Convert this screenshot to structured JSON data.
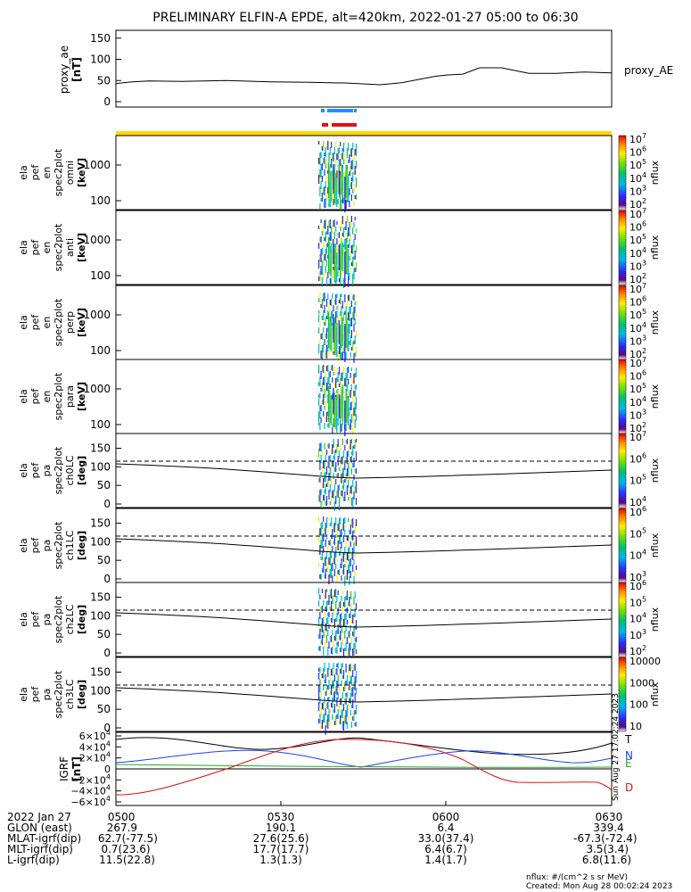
{
  "title": "PRELIMINARY ELFIN-A EPDE, alt=420km, 2022-01-27 05:00 to 06:30",
  "colors": {
    "blue": "#1f8fff",
    "red": "#dd1111",
    "yellow": "#ffd800",
    "green": "#22aa22"
  },
  "chart_data": [
    {
      "type": "line",
      "ylabel": "proxy_ae [nT]",
      "series": [
        {
          "name": "proxy_AE",
          "x": [
            "05:00",
            "05:03",
            "05:06",
            "05:12",
            "05:20",
            "05:28",
            "05:35",
            "05:42",
            "05:48",
            "05:52",
            "05:58",
            "06:00",
            "06:03",
            "06:06",
            "06:10",
            "06:15",
            "06:20",
            "06:25",
            "06:30"
          ],
          "values": [
            43,
            47,
            49,
            48,
            50,
            47,
            46,
            44,
            40,
            45,
            60,
            63,
            65,
            80,
            80,
            67,
            67,
            70,
            68
          ]
        }
      ],
      "yticks": [
        "0",
        "50",
        "100",
        "150"
      ],
      "ylim": [
        0,
        160
      ]
    },
    {
      "type": "heatmap",
      "ylabel_lines": [
        "ela",
        "pef",
        "en",
        "spec2plot",
        "omni",
        "[keV]"
      ],
      "yticks": [
        "100",
        "1000"
      ],
      "colorbar": {
        "label": "nflux",
        "ticks": [
          "10^2",
          "10^3",
          "10^4",
          "10^5",
          "10^6",
          "10^7"
        ]
      }
    },
    {
      "type": "heatmap",
      "ylabel_lines": [
        "ela",
        "pef",
        "en",
        "spec2plot",
        "anti",
        "[keV]"
      ],
      "yticks": [
        "100",
        "1000"
      ],
      "colorbar": {
        "label": "nflux",
        "ticks": [
          "10^2",
          "10^3",
          "10^4",
          "10^5",
          "10^6",
          "10^7"
        ]
      }
    },
    {
      "type": "heatmap",
      "ylabel_lines": [
        "ela",
        "pef",
        "en",
        "spec2plot",
        "perp",
        "[keV]"
      ],
      "yticks": [
        "100",
        "1000"
      ],
      "colorbar": {
        "label": "nflux",
        "ticks": [
          "10^2",
          "10^3",
          "10^4",
          "10^5",
          "10^6",
          "10^7"
        ]
      }
    },
    {
      "type": "heatmap",
      "ylabel_lines": [
        "ela",
        "pef",
        "en",
        "spec2plot",
        "para",
        "[keV]"
      ],
      "yticks": [
        "100",
        "1000"
      ],
      "colorbar": {
        "label": "nflux",
        "ticks": [
          "10^2",
          "10^3",
          "10^4",
          "10^5",
          "10^6",
          "10^7"
        ]
      }
    },
    {
      "type": "heatmap",
      "ylabel_lines": [
        "ela",
        "pef",
        "pa",
        "spec2plot",
        "ch0LC",
        "[deg]"
      ],
      "yticks": [
        "0",
        "50",
        "100",
        "150"
      ],
      "colorbar": {
        "label": "nflux",
        "ticks": [
          "10^4",
          "10^5",
          "10^6",
          "10^7"
        ]
      }
    },
    {
      "type": "heatmap",
      "ylabel_lines": [
        "ela",
        "pef",
        "pa",
        "spec2plot",
        "ch1LC",
        "[deg]"
      ],
      "yticks": [
        "0",
        "50",
        "100",
        "150"
      ],
      "colorbar": {
        "label": "nflux",
        "ticks": [
          "10^3",
          "10^4",
          "10^5",
          "10^6"
        ]
      }
    },
    {
      "type": "heatmap",
      "ylabel_lines": [
        "ela",
        "pef",
        "pa",
        "spec2plot",
        "ch2LC",
        "[deg]"
      ],
      "yticks": [
        "0",
        "50",
        "100",
        "150"
      ],
      "colorbar": {
        "label": "nflux",
        "ticks": [
          "10^2",
          "10^3",
          "10^4",
          "10^5",
          "10^6"
        ]
      }
    },
    {
      "type": "heatmap",
      "ylabel_lines": [
        "ela",
        "pef",
        "pa",
        "spec2plot",
        "ch3LC",
        "[deg]"
      ],
      "yticks": [
        "0",
        "50",
        "100",
        "150"
      ],
      "colorbar": {
        "label": "nflux",
        "ticks": [
          "10",
          "100",
          "1000",
          "10000"
        ]
      }
    },
    {
      "type": "line",
      "ylabel": "IGRF [nT]",
      "yticks": [
        "6×10^4",
        "4×10^4",
        "2×10^4",
        "0",
        "−2×10^4",
        "−4×10^4",
        "−6×10^4"
      ],
      "ylim": [
        -60000,
        60000
      ],
      "series": [
        {
          "name": "T",
          "color": "#000000"
        },
        {
          "name": "N",
          "color": "#1f3fff"
        },
        {
          "name": "E",
          "color": "#22aa22"
        },
        {
          "name": "D",
          "color": "#dd1111"
        }
      ],
      "side_note": "Sun Aug 27 17:02:24 2023"
    }
  ],
  "xaxis": {
    "rows": [
      {
        "label": "2022 Jan 27",
        "values": [
          "0500",
          "0530",
          "0600",
          "0630"
        ]
      },
      {
        "label": "GLON (east)",
        "values": [
          "267.9",
          "190.1",
          "6.4",
          "339.4"
        ]
      },
      {
        "label": "MLAT-igrf(dip)",
        "values": [
          "62.7(-77.5)",
          "27.6(25.6)",
          "33.0(37.4)",
          "-67.3(-72.4)"
        ]
      },
      {
        "label": "MLT-igrf(dip)",
        "values": [
          "0.7(23.6)",
          "17.7(17.7)",
          "6.4(6.7)",
          "3.5(3.4)"
        ]
      },
      {
        "label": "L-igrf(dip)",
        "values": [
          "11.5(22.8)",
          "1.3(1.3)",
          "1.4(1.7)",
          "6.8(11.6)"
        ]
      }
    ]
  },
  "footer": {
    "units": "nflux: #/(cm^2 s sr MeV)",
    "created": "Created: Mon Aug 28 00:02:24 2023"
  }
}
